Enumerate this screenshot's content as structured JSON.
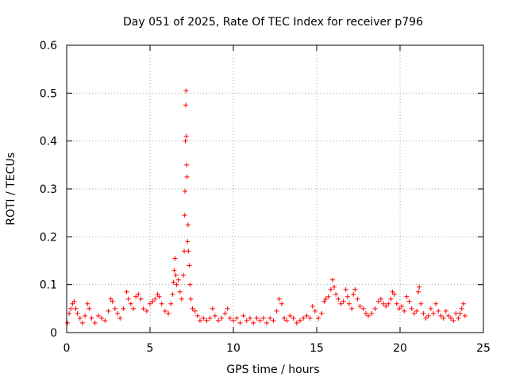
{
  "chart_data": {
    "type": "scatter",
    "title": "Day 051 of 2025, Rate Of TEC Index for receiver p796",
    "xlabel": "GPS time / hours",
    "ylabel": "ROTI / TECUs",
    "xlim": [
      0,
      25
    ],
    "ylim": [
      0,
      0.6
    ],
    "xticks": [
      "0",
      "5",
      "10",
      "15",
      "20",
      "25"
    ],
    "yticks": [
      "0",
      "0.1",
      "0.2",
      "0.3",
      "0.4",
      "0.5",
      "0.6"
    ],
    "grid": true,
    "marker": "+",
    "marker_color": "#ff0000",
    "series": [
      {
        "points": [
          [
            0.05,
            0.02
          ],
          [
            0.15,
            0.04
          ],
          [
            0.25,
            0.05
          ],
          [
            0.35,
            0.06
          ],
          [
            0.45,
            0.065
          ],
          [
            0.55,
            0.05
          ],
          [
            0.65,
            0.04
          ],
          [
            0.8,
            0.03
          ],
          [
            0.95,
            0.02
          ],
          [
            1.1,
            0.035
          ],
          [
            1.25,
            0.06
          ],
          [
            1.35,
            0.05
          ],
          [
            1.5,
            0.03
          ],
          [
            1.7,
            0.02
          ],
          [
            1.9,
            0.035
          ],
          [
            2.1,
            0.03
          ],
          [
            2.3,
            0.025
          ],
          [
            2.5,
            0.045
          ],
          [
            2.65,
            0.07
          ],
          [
            2.75,
            0.065
          ],
          [
            2.9,
            0.05
          ],
          [
            3.05,
            0.04
          ],
          [
            3.2,
            0.03
          ],
          [
            3.4,
            0.05
          ],
          [
            3.6,
            0.085
          ],
          [
            3.7,
            0.07
          ],
          [
            3.85,
            0.06
          ],
          [
            4.0,
            0.05
          ],
          [
            4.15,
            0.075
          ],
          [
            4.3,
            0.08
          ],
          [
            4.45,
            0.07
          ],
          [
            4.6,
            0.05
          ],
          [
            4.8,
            0.045
          ],
          [
            5.0,
            0.06
          ],
          [
            5.15,
            0.065
          ],
          [
            5.3,
            0.07
          ],
          [
            5.45,
            0.08
          ],
          [
            5.55,
            0.075
          ],
          [
            5.7,
            0.06
          ],
          [
            5.9,
            0.045
          ],
          [
            6.1,
            0.04
          ],
          [
            6.25,
            0.06
          ],
          [
            6.35,
            0.08
          ],
          [
            6.4,
            0.105
          ],
          [
            6.45,
            0.13
          ],
          [
            6.5,
            0.155
          ],
          [
            6.55,
            0.12
          ],
          [
            6.6,
            0.1
          ],
          [
            6.7,
            0.11
          ],
          [
            6.8,
            0.085
          ],
          [
            6.9,
            0.07
          ],
          [
            7.0,
            0.12
          ],
          [
            7.05,
            0.17
          ],
          [
            7.08,
            0.245
          ],
          [
            7.1,
            0.295
          ],
          [
            7.12,
            0.4
          ],
          [
            7.14,
            0.475
          ],
          [
            7.16,
            0.505
          ],
          [
            7.18,
            0.41
          ],
          [
            7.2,
            0.35
          ],
          [
            7.22,
            0.325
          ],
          [
            7.25,
            0.19
          ],
          [
            7.28,
            0.225
          ],
          [
            7.3,
            0.17
          ],
          [
            7.35,
            0.14
          ],
          [
            7.4,
            0.1
          ],
          [
            7.45,
            0.07
          ],
          [
            7.55,
            0.05
          ],
          [
            7.7,
            0.045
          ],
          [
            7.85,
            0.035
          ],
          [
            8.0,
            0.025
          ],
          [
            8.2,
            0.03
          ],
          [
            8.4,
            0.025
          ],
          [
            8.6,
            0.03
          ],
          [
            8.75,
            0.05
          ],
          [
            8.9,
            0.035
          ],
          [
            9.1,
            0.025
          ],
          [
            9.3,
            0.03
          ],
          [
            9.5,
            0.04
          ],
          [
            9.65,
            0.05
          ],
          [
            9.8,
            0.03
          ],
          [
            10.0,
            0.025
          ],
          [
            10.2,
            0.03
          ],
          [
            10.4,
            0.02
          ],
          [
            10.6,
            0.035
          ],
          [
            10.8,
            0.025
          ],
          [
            11.0,
            0.03
          ],
          [
            11.2,
            0.02
          ],
          [
            11.4,
            0.03
          ],
          [
            11.6,
            0.025
          ],
          [
            11.8,
            0.03
          ],
          [
            12.0,
            0.02
          ],
          [
            12.2,
            0.03
          ],
          [
            12.4,
            0.025
          ],
          [
            12.6,
            0.045
          ],
          [
            12.75,
            0.07
          ],
          [
            12.9,
            0.06
          ],
          [
            13.05,
            0.03
          ],
          [
            13.2,
            0.025
          ],
          [
            13.4,
            0.035
          ],
          [
            13.6,
            0.03
          ],
          [
            13.8,
            0.02
          ],
          [
            14.0,
            0.025
          ],
          [
            14.2,
            0.03
          ],
          [
            14.4,
            0.035
          ],
          [
            14.6,
            0.03
          ],
          [
            14.75,
            0.055
          ],
          [
            14.9,
            0.045
          ],
          [
            15.1,
            0.03
          ],
          [
            15.3,
            0.04
          ],
          [
            15.45,
            0.065
          ],
          [
            15.55,
            0.07
          ],
          [
            15.7,
            0.075
          ],
          [
            15.85,
            0.09
          ],
          [
            15.95,
            0.11
          ],
          [
            16.05,
            0.095
          ],
          [
            16.15,
            0.08
          ],
          [
            16.3,
            0.07
          ],
          [
            16.45,
            0.06
          ],
          [
            16.6,
            0.065
          ],
          [
            16.75,
            0.09
          ],
          [
            16.85,
            0.075
          ],
          [
            16.95,
            0.06
          ],
          [
            17.1,
            0.05
          ],
          [
            17.2,
            0.08
          ],
          [
            17.3,
            0.09
          ],
          [
            17.45,
            0.07
          ],
          [
            17.6,
            0.055
          ],
          [
            17.8,
            0.05
          ],
          [
            17.95,
            0.04
          ],
          [
            18.1,
            0.035
          ],
          [
            18.3,
            0.04
          ],
          [
            18.5,
            0.05
          ],
          [
            18.7,
            0.065
          ],
          [
            18.85,
            0.07
          ],
          [
            19.0,
            0.06
          ],
          [
            19.15,
            0.055
          ],
          [
            19.3,
            0.06
          ],
          [
            19.45,
            0.07
          ],
          [
            19.55,
            0.085
          ],
          [
            19.65,
            0.08
          ],
          [
            19.8,
            0.06
          ],
          [
            19.95,
            0.05
          ],
          [
            20.1,
            0.055
          ],
          [
            20.25,
            0.045
          ],
          [
            20.4,
            0.075
          ],
          [
            20.55,
            0.065
          ],
          [
            20.7,
            0.05
          ],
          [
            20.85,
            0.04
          ],
          [
            21.0,
            0.045
          ],
          [
            21.1,
            0.085
          ],
          [
            21.15,
            0.095
          ],
          [
            21.25,
            0.06
          ],
          [
            21.4,
            0.04
          ],
          [
            21.55,
            0.03
          ],
          [
            21.7,
            0.035
          ],
          [
            21.85,
            0.05
          ],
          [
            22.0,
            0.04
          ],
          [
            22.15,
            0.06
          ],
          [
            22.3,
            0.045
          ],
          [
            22.45,
            0.035
          ],
          [
            22.6,
            0.03
          ],
          [
            22.75,
            0.045
          ],
          [
            22.9,
            0.035
          ],
          [
            23.05,
            0.03
          ],
          [
            23.2,
            0.025
          ],
          [
            23.35,
            0.04
          ],
          [
            23.5,
            0.03
          ],
          [
            23.6,
            0.04
          ],
          [
            23.7,
            0.05
          ],
          [
            23.8,
            0.06
          ],
          [
            23.9,
            0.035
          ]
        ]
      }
    ]
  }
}
